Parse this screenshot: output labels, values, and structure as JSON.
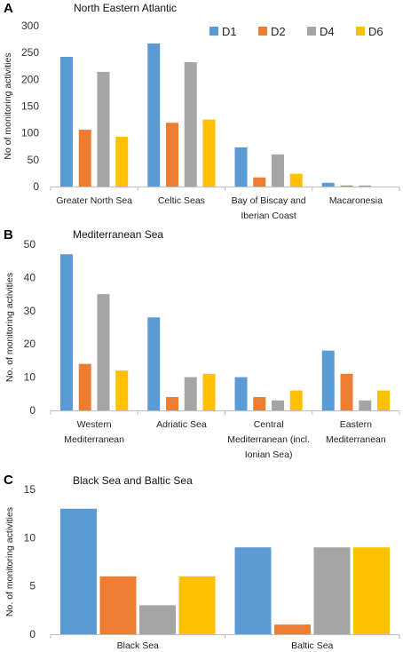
{
  "chart_data": [
    {
      "type": "bar",
      "panel": "A",
      "title": "North Eastern Atlantic",
      "ylabel": "No of monitoring activities",
      "ylim": [
        0,
        300
      ],
      "yticks": [
        0,
        50,
        100,
        150,
        200,
        250,
        300
      ],
      "categories": [
        [
          "Greater North Sea"
        ],
        [
          "Celtic Seas"
        ],
        [
          "Bay of Biscay and",
          "Iberian Coast"
        ],
        [
          "Macaronesia"
        ]
      ],
      "series": [
        {
          "name": "D1",
          "color": "#5B9BD5",
          "values": [
            242,
            267,
            73,
            7
          ]
        },
        {
          "name": "D2",
          "color": "#ED7D31",
          "values": [
            106,
            119,
            17,
            2
          ]
        },
        {
          "name": "D4",
          "color": "#A5A5A5",
          "values": [
            214,
            232,
            60,
            2
          ]
        },
        {
          "name": "D6",
          "color": "#FFC000",
          "values": [
            93,
            125,
            24,
            0
          ]
        }
      ],
      "legend": "top-right"
    },
    {
      "type": "bar",
      "panel": "B",
      "title": "Mediterranean  Sea",
      "ylabel": "No. of monitoring activities",
      "ylim": [
        0,
        50
      ],
      "yticks": [
        0,
        10,
        20,
        30,
        40,
        50
      ],
      "categories": [
        [
          "Western",
          "Mediterranean"
        ],
        [
          "Adriatic Sea"
        ],
        [
          "Central",
          "Mediterranean (incl.",
          "Ionian Sea)"
        ],
        [
          "Eastern",
          "Mediterranean"
        ]
      ],
      "series": [
        {
          "name": "D1",
          "color": "#5B9BD5",
          "values": [
            47,
            28,
            10,
            18
          ]
        },
        {
          "name": "D2",
          "color": "#ED7D31",
          "values": [
            14,
            4,
            4,
            11
          ]
        },
        {
          "name": "D4",
          "color": "#A5A5A5",
          "values": [
            35,
            10,
            3,
            3
          ]
        },
        {
          "name": "D6",
          "color": "#FFC000",
          "values": [
            12,
            11,
            6,
            6
          ]
        }
      ]
    },
    {
      "type": "bar",
      "panel": "C",
      "title": "Black Sea and Baltic Sea",
      "ylabel": "No. of monitoring activities",
      "ylim": [
        0,
        15
      ],
      "yticks": [
        0,
        5,
        10,
        15
      ],
      "categories": [
        [
          "Black Sea"
        ],
        [
          "Baltic Sea"
        ]
      ],
      "series": [
        {
          "name": "D1",
          "color": "#5B9BD5",
          "values": [
            13,
            9
          ]
        },
        {
          "name": "D2",
          "color": "#ED7D31",
          "values": [
            6,
            1
          ]
        },
        {
          "name": "D4",
          "color": "#A5A5A5",
          "values": [
            3,
            9
          ]
        },
        {
          "name": "D6",
          "color": "#FFC000",
          "values": [
            6,
            9
          ]
        }
      ]
    }
  ]
}
